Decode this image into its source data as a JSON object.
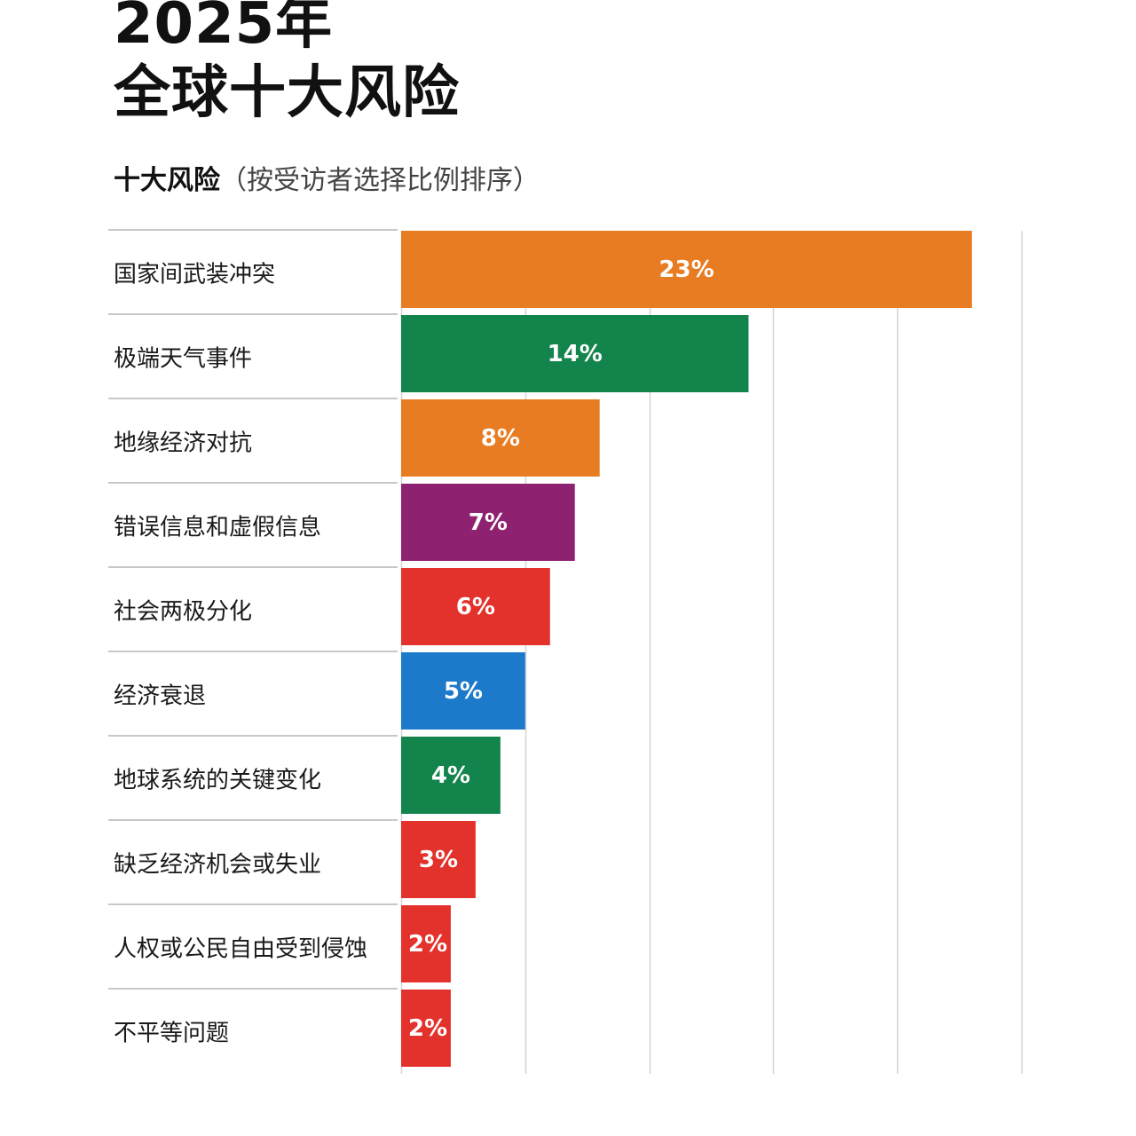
{
  "header": {
    "title_line1": "2025年",
    "title_line2": "全球十大风险",
    "subtitle_main": "十大风险",
    "subtitle_note": "（按受访者选择比例排序）"
  },
  "chart_data": {
    "type": "bar",
    "orientation": "horizontal",
    "title": "2025年 全球十大风险",
    "subtitle": "十大风险（按受访者选择比例排序）",
    "categories": [
      "国家间武装冲突",
      "极端天气事件",
      "地缘经济对抗",
      "错误信息和虚假信息",
      "社会两极分化",
      "经济衰退",
      "地球系统的关键变化",
      "缺乏经济机会或失业",
      "人权或公民自由受到侵蚀",
      "不平等问题"
    ],
    "values": [
      23,
      14,
      8,
      7,
      6,
      5,
      4,
      3,
      2,
      2
    ],
    "labels": [
      "23%",
      "14%",
      "8%",
      "7%",
      "6%",
      "5%",
      "4%",
      "3%",
      "2%",
      "2%"
    ],
    "colors": [
      "#E87C22",
      "#13844C",
      "#E87C22",
      "#8E2271",
      "#E3322B",
      "#1D7ACB",
      "#13844C",
      "#E3322B",
      "#E3322B",
      "#E3322B"
    ],
    "unit": "%",
    "xlim": [
      0,
      25
    ],
    "grid": true,
    "legend": "none"
  }
}
